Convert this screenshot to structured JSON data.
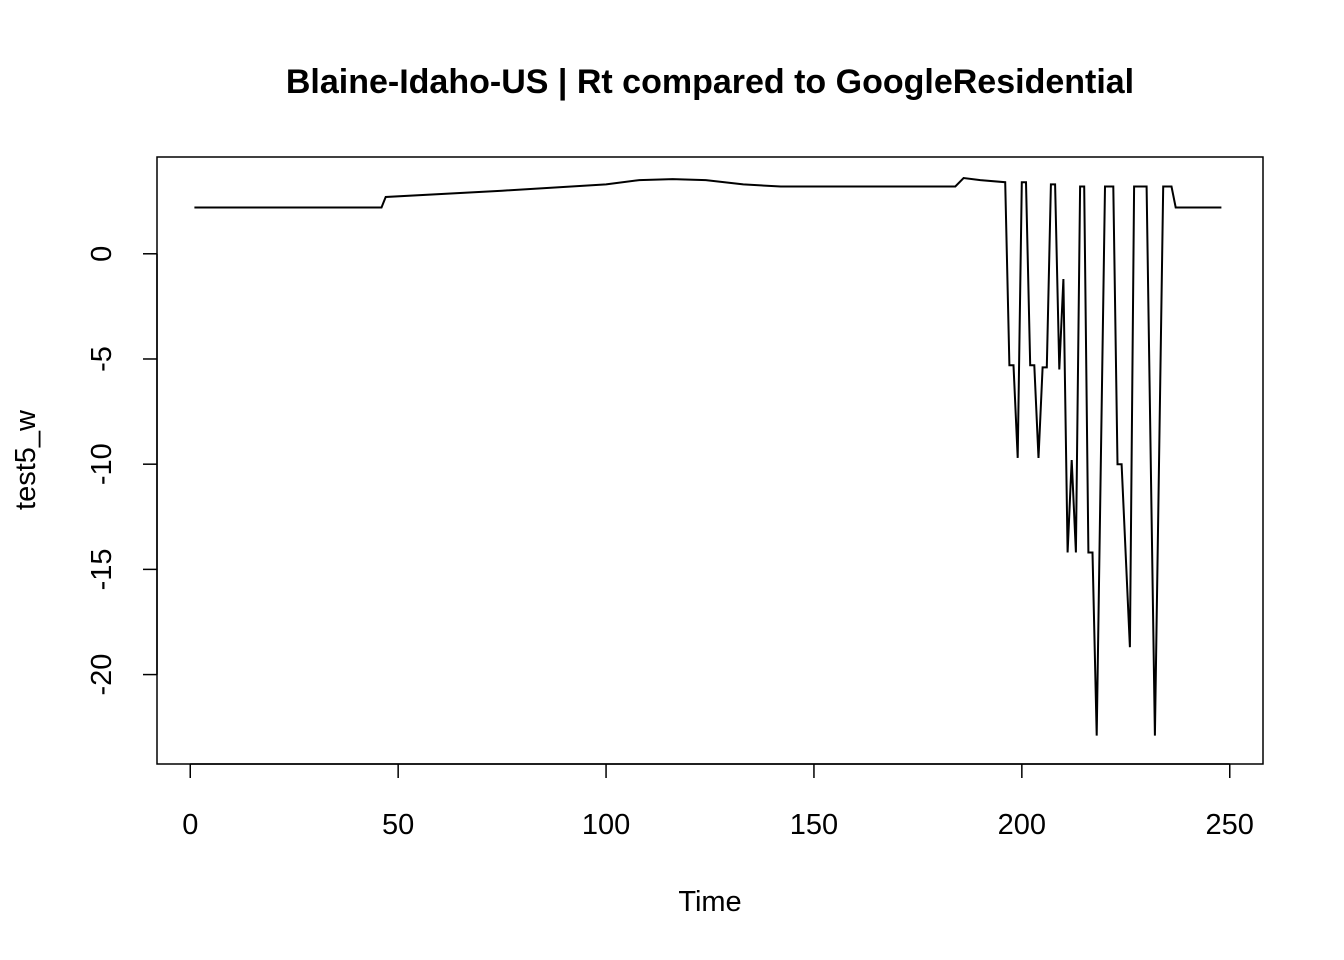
{
  "chart_data": {
    "type": "line",
    "title": "Blaine-Idaho-US | Rt compared to GoogleResidential",
    "xlabel": "Time",
    "ylabel": "test5_w",
    "xlim": [
      -8,
      258
    ],
    "ylim": [
      -24.25,
      4.6
    ],
    "x_ticks": [
      0,
      50,
      100,
      150,
      200,
      250
    ],
    "y_ticks": [
      0,
      -5,
      -10,
      -15,
      -20
    ],
    "grid": false,
    "legend": "none",
    "line_color": "#000000",
    "series": [
      {
        "points": [
          [
            1,
            2.2
          ],
          [
            46,
            2.2
          ],
          [
            47,
            2.7
          ],
          [
            75,
            3.0
          ],
          [
            100,
            3.3
          ],
          [
            108,
            3.5
          ],
          [
            116,
            3.55
          ],
          [
            124,
            3.5
          ],
          [
            133,
            3.3
          ],
          [
            142,
            3.2
          ],
          [
            164,
            3.2
          ],
          [
            184,
            3.2
          ],
          [
            186,
            3.6
          ],
          [
            190,
            3.5
          ],
          [
            196,
            3.4
          ],
          [
            197,
            -5.3
          ],
          [
            198,
            -5.3
          ],
          [
            199,
            -9.7
          ],
          [
            200,
            3.4
          ],
          [
            201,
            3.4
          ],
          [
            202,
            -5.3
          ],
          [
            203,
            -5.3
          ],
          [
            204,
            -9.7
          ],
          [
            205,
            -5.4
          ],
          [
            206,
            -5.4
          ],
          [
            207,
            3.3
          ],
          [
            208,
            3.3
          ],
          [
            209,
            -5.5
          ],
          [
            210,
            -1.2
          ],
          [
            211,
            -14.2
          ],
          [
            212,
            -9.8
          ],
          [
            213,
            -14.2
          ],
          [
            214,
            3.2
          ],
          [
            215,
            3.2
          ],
          [
            216,
            -14.2
          ],
          [
            217,
            -14.2
          ],
          [
            218,
            -22.9
          ],
          [
            220,
            3.2
          ],
          [
            222,
            3.2
          ],
          [
            223,
            -10.0
          ],
          [
            224,
            -10.0
          ],
          [
            226,
            -18.7
          ],
          [
            227,
            3.2
          ],
          [
            230,
            3.2
          ],
          [
            232,
            -22.9
          ],
          [
            234,
            3.2
          ],
          [
            236,
            3.2
          ],
          [
            237,
            2.2
          ],
          [
            248,
            2.2
          ]
        ]
      }
    ]
  }
}
